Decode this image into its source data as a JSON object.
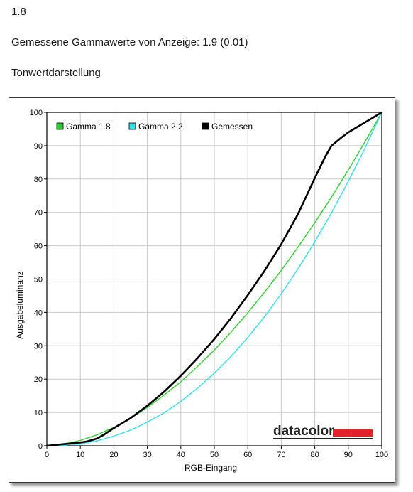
{
  "header": {
    "value_line": "1.8",
    "measured_line": "Gemessene Gammawerte von Anzeige: 1.9 (0.01)",
    "section_title": "Tonwertdarstellung"
  },
  "logo": {
    "text": "datacolor",
    "bar_color": "#e3232b"
  },
  "chart_data": {
    "type": "line",
    "xlabel": "RGB-Eingang",
    "ylabel": "Ausgabeluminanz",
    "xlim": [
      0,
      100
    ],
    "ylim": [
      0,
      100
    ],
    "xticks": [
      0,
      10,
      20,
      30,
      40,
      50,
      60,
      70,
      80,
      90,
      100
    ],
    "yticks": [
      0,
      10,
      20,
      30,
      40,
      50,
      60,
      70,
      80,
      90,
      100
    ],
    "grid": true,
    "legend_position": "top-left",
    "series": [
      {
        "name": "Gamma 1.8",
        "color": "#33cc33",
        "x": [
          0,
          5,
          10,
          15,
          20,
          25,
          30,
          35,
          40,
          45,
          50,
          55,
          60,
          65,
          70,
          75,
          80,
          85,
          90,
          95,
          100
        ],
        "y": [
          0,
          0.5,
          1.6,
          3.3,
          5.5,
          8.2,
          11.5,
          15.2,
          19.2,
          23.8,
          28.7,
          34.1,
          39.9,
          46.1,
          52.6,
          59.6,
          66.9,
          74.6,
          82.7,
          91.2,
          100
        ]
      },
      {
        "name": "Gamma 2.2",
        "color": "#33e0e8",
        "x": [
          0,
          5,
          10,
          15,
          20,
          25,
          30,
          35,
          40,
          45,
          50,
          55,
          60,
          65,
          70,
          75,
          80,
          85,
          90,
          95,
          100
        ],
        "y": [
          0,
          0.1,
          0.6,
          1.5,
          2.9,
          4.7,
          7.1,
          9.9,
          13.3,
          17.3,
          21.8,
          26.8,
          32.5,
          38.7,
          45.6,
          53.1,
          61.2,
          69.9,
          79.3,
          89.3,
          100
        ]
      },
      {
        "name": "Gemessen",
        "color": "#000000",
        "x": [
          0,
          5,
          10,
          12,
          15,
          17,
          20,
          25,
          30,
          35,
          40,
          45,
          50,
          55,
          60,
          65,
          70,
          75,
          78,
          80,
          83,
          85,
          88,
          90,
          95,
          100
        ],
        "y": [
          0,
          0.5,
          1.0,
          1.3,
          2.2,
          3.3,
          5.3,
          8.3,
          12.0,
          16.2,
          21.0,
          26.3,
          32.0,
          38.3,
          45.2,
          52.5,
          60.5,
          69.5,
          76.0,
          80.3,
          86.5,
          90.0,
          92.5,
          94.0,
          97.0,
          100
        ]
      }
    ]
  }
}
